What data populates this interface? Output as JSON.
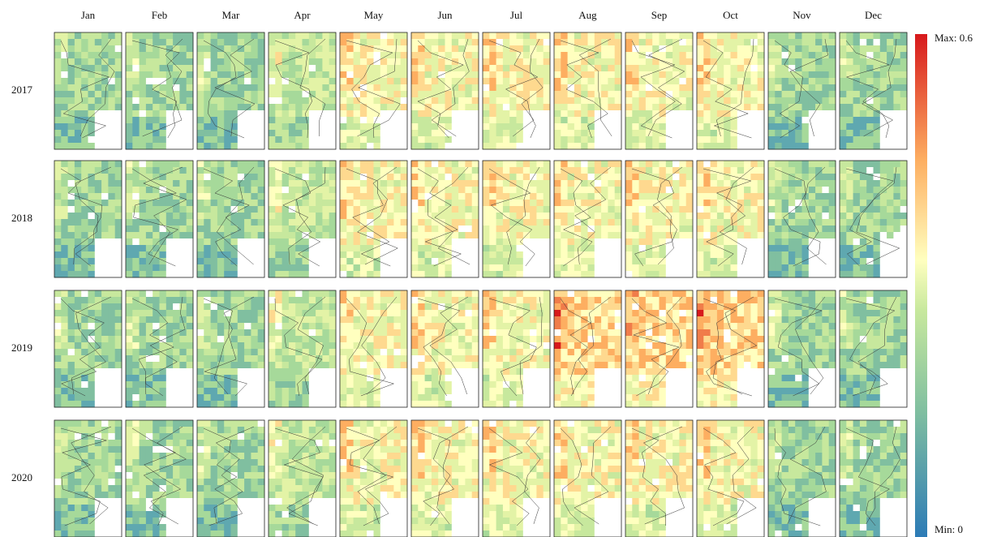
{
  "months": [
    "Jan",
    "Feb",
    "Mar",
    "Apr",
    "May",
    "Jun",
    "Jul",
    "Aug",
    "Sep",
    "Oct",
    "Nov",
    "Dec"
  ],
  "years": [
    "2017",
    "2018",
    "2019",
    "2020"
  ],
  "colorbar": {
    "max_label": "Max: 0.6",
    "min_label": "Min: 0"
  }
}
